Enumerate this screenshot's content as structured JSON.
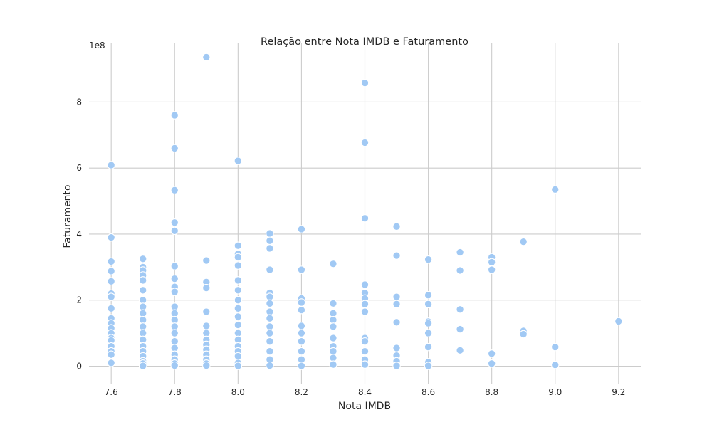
{
  "chart_data": {
    "type": "scatter",
    "title": "Relação entre Nota IMDB e Faturamento",
    "xlabel": "Nota IMDB",
    "ylabel": "Faturamento",
    "y_offset_label": "1e8",
    "xlim": [
      7.53,
      9.27
    ],
    "ylim": [
      -55000000.0,
      980000000.0
    ],
    "x_ticks": [
      7.6,
      7.8,
      8.0,
      8.2,
      8.4,
      8.6,
      8.8,
      9.0,
      9.2
    ],
    "x_tick_labels": [
      "7.6",
      "7.8",
      "8.0",
      "8.2",
      "8.4",
      "8.6",
      "8.8",
      "9.0",
      "9.2"
    ],
    "y_ticks": [
      0,
      200000000,
      400000000,
      600000000,
      800000000
    ],
    "y_tick_labels": [
      "0",
      "2",
      "4",
      "6",
      "8"
    ],
    "grid": true,
    "point_color": "#a1c9f4",
    "series": [
      {
        "x": [
          7.6,
          7.6,
          7.6,
          7.6,
          7.6,
          7.6,
          7.6,
          7.6,
          7.6,
          7.6,
          7.6,
          7.6,
          7.6,
          7.6,
          7.6,
          7.6,
          7.6,
          7.6,
          7.7,
          7.7,
          7.7,
          7.7,
          7.7,
          7.7,
          7.7,
          7.7,
          7.7,
          7.7,
          7.7,
          7.7,
          7.7,
          7.7,
          7.7,
          7.7,
          7.7,
          7.7,
          7.7,
          7.8,
          7.8,
          7.8,
          7.8,
          7.8,
          7.8,
          7.8,
          7.8,
          7.8,
          7.8,
          7.8,
          7.8,
          7.8,
          7.8,
          7.8,
          7.8,
          7.8,
          7.8,
          7.8,
          7.8,
          7.9,
          7.9,
          7.9,
          7.9,
          7.9,
          7.9,
          7.9,
          7.9,
          7.9,
          7.9,
          7.9,
          7.9,
          7.9,
          7.9,
          8.0,
          8.0,
          8.0,
          8.0,
          8.0,
          8.0,
          8.0,
          8.0,
          8.0,
          8.0,
          8.0,
          8.0,
          8.0,
          8.0,
          8.0,
          8.0,
          8.0,
          8.0,
          8.1,
          8.1,
          8.1,
          8.1,
          8.1,
          8.1,
          8.1,
          8.1,
          8.1,
          8.1,
          8.1,
          8.1,
          8.1,
          8.1,
          8.1,
          8.2,
          8.2,
          8.2,
          8.2,
          8.2,
          8.2,
          8.2,
          8.2,
          8.2,
          8.2,
          8.2,
          8.3,
          8.3,
          8.3,
          8.3,
          8.3,
          8.3,
          8.3,
          8.3,
          8.3,
          8.3,
          8.4,
          8.4,
          8.4,
          8.4,
          8.4,
          8.4,
          8.4,
          8.4,
          8.4,
          8.4,
          8.4,
          8.4,
          8.4,
          8.5,
          8.5,
          8.5,
          8.5,
          8.5,
          8.5,
          8.5,
          8.5,
          8.5,
          8.6,
          8.6,
          8.6,
          8.6,
          8.6,
          8.6,
          8.6,
          8.6,
          8.6,
          8.7,
          8.7,
          8.7,
          8.7,
          8.7,
          8.8,
          8.8,
          8.8,
          8.8,
          8.8,
          8.9,
          8.9,
          8.9,
          9.0,
          9.0,
          9.0,
          9.2
        ],
        "y": [
          609000000,
          390000000,
          317000000,
          288000000,
          257000000,
          220000000,
          210000000,
          175000000,
          145000000,
          130000000,
          115000000,
          100000000,
          85000000,
          78000000,
          60000000,
          45000000,
          35000000,
          10000000,
          325000000,
          300000000,
          290000000,
          275000000,
          260000000,
          230000000,
          200000000,
          180000000,
          160000000,
          140000000,
          120000000,
          100000000,
          80000000,
          60000000,
          45000000,
          30000000,
          15000000,
          8000000,
          1000000,
          760000000,
          660000000,
          533000000,
          435000000,
          410000000,
          303000000,
          265000000,
          240000000,
          225000000,
          180000000,
          160000000,
          140000000,
          120000000,
          100000000,
          75000000,
          55000000,
          35000000,
          20000000,
          8000000,
          2000000,
          936000000,
          320000000,
          255000000,
          237000000,
          165000000,
          122000000,
          100000000,
          80000000,
          65000000,
          50000000,
          35000000,
          20000000,
          8000000,
          2000000,
          622000000,
          365000000,
          340000000,
          330000000,
          305000000,
          260000000,
          230000000,
          200000000,
          175000000,
          150000000,
          125000000,
          100000000,
          80000000,
          60000000,
          45000000,
          30000000,
          10000000,
          1000000,
          402000000,
          380000000,
          357000000,
          292000000,
          222000000,
          210000000,
          190000000,
          165000000,
          145000000,
          120000000,
          100000000,
          75000000,
          45000000,
          20000000,
          2000000,
          415000000,
          292000000,
          205000000,
          193000000,
          170000000,
          122000000,
          100000000,
          75000000,
          45000000,
          20000000,
          1000000,
          310000000,
          190000000,
          160000000,
          140000000,
          120000000,
          85000000,
          60000000,
          45000000,
          25000000,
          5000000,
          858000000,
          677000000,
          448000000,
          247000000,
          222000000,
          205000000,
          188000000,
          165000000,
          85000000,
          75000000,
          45000000,
          20000000,
          5000000,
          423000000,
          335000000,
          210000000,
          188000000,
          133000000,
          55000000,
          32000000,
          15000000,
          1000000,
          323000000,
          215000000,
          188000000,
          135000000,
          130000000,
          100000000,
          58000000,
          12000000,
          1000000,
          345000000,
          290000000,
          172000000,
          112000000,
          48000000,
          330000000,
          315000000,
          292000000,
          38000000,
          8000000,
          377000000,
          107000000,
          97000000,
          535000000,
          58000000,
          4000000,
          136000000
        ]
      }
    ]
  }
}
